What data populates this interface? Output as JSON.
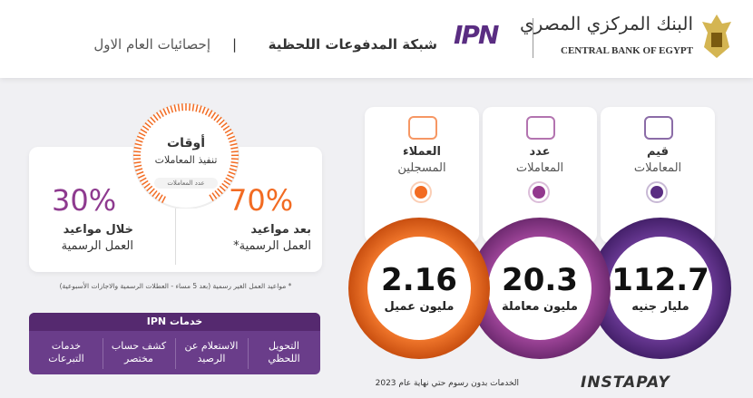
{
  "header": {
    "bank_ar": "البنك المركزي المصري",
    "bank_en": "CENTRAL BANK OF EGYPT",
    "logo": "IPN",
    "title": "شبكة المدفوعات اللحظية",
    "separator": "|",
    "subtitle": "إحصائيات العام الاول"
  },
  "stats": [
    {
      "label1": "قيم",
      "label2": "المعاملات",
      "value": "112.7",
      "unit": "مليار جنيه"
    },
    {
      "label1": "عدد",
      "label2": "المعاملات",
      "value": "20.3",
      "unit": "مليون معاملة"
    },
    {
      "label1": "العملاء",
      "label2": "المسجلين",
      "value": "2.16",
      "unit": "مليون عميل"
    }
  ],
  "timing": {
    "title1": "أوقات",
    "title2": "تنفيذ المعاملات",
    "badge": "عدد المعاملات",
    "after": {
      "percent": "70%",
      "label1": "بعد مواعيد",
      "label2": "العمل الرسمية*"
    },
    "during": {
      "percent": "30%",
      "label1": "خلال مواعيد",
      "label2": "العمل الرسمية"
    },
    "footnote": "* مواعيد العمل الغير رسمية (بعد 5 مساء - العطلات الرسمية والاجازات الأسبوعية)"
  },
  "services": {
    "title": "خدمات IPN",
    "items": [
      "التحويل اللحظي",
      "الاستعلام عن الرصيد",
      "كشف حساب مختصر",
      "خدمات التبرعات"
    ]
  },
  "footer": {
    "note": "الخدمات بدون رسوم حتي نهاية عام 2023",
    "logo": "INSTAPAY"
  }
}
